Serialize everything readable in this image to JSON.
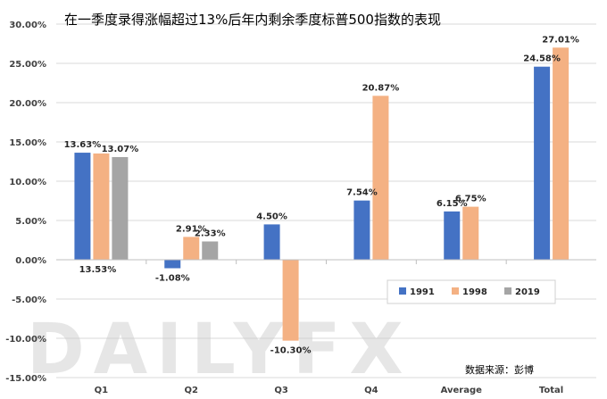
{
  "chart_data": {
    "type": "bar",
    "title": "在一季度录得涨幅超过13%后年内剩余季度标普500指数的表现",
    "categories": [
      "Q1",
      "Q2",
      "Q3",
      "Q4",
      "Average",
      "Total"
    ],
    "series": [
      {
        "name": "1991",
        "color": "#4472C4",
        "values": [
          13.63,
          -1.08,
          4.5,
          7.54,
          6.15,
          24.58
        ],
        "labels": [
          "13.63%",
          "-1.08%",
          "4.50%",
          "7.54%",
          "6.15%",
          "24.58%"
        ]
      },
      {
        "name": "1998",
        "color": "#F4B183",
        "values": [
          13.53,
          2.91,
          -10.3,
          20.87,
          6.75,
          27.01
        ],
        "labels": [
          "13.53%",
          "2.91%",
          "-10.30%",
          "20.87%",
          "6.75%",
          "27.01%"
        ]
      },
      {
        "name": "2019",
        "color": "#A5A5A5",
        "values": [
          13.07,
          2.33,
          null,
          null,
          null,
          null
        ],
        "labels": [
          "13.07%",
          "2.33%",
          "",
          "",
          "",
          ""
        ]
      }
    ],
    "ylim": [
      -15,
      30
    ],
    "yticks": [
      30,
      25,
      20,
      15,
      10,
      5,
      0,
      -5,
      -10,
      -15
    ],
    "ytick_labels": [
      "30.00%",
      "25.00%",
      "20.00%",
      "15.00%",
      "10.00%",
      "5.00%",
      "0.00%",
      "-5.00%",
      "-10.00%",
      "-15.00%"
    ],
    "legend_position": "bottom-right",
    "grid": true
  },
  "watermark": "DAILYFX",
  "source_note": "数据来源：彭博"
}
